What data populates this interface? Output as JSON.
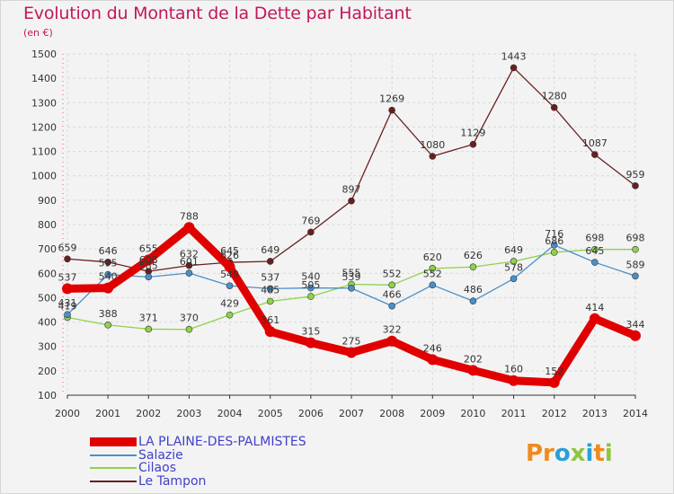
{
  "title": "Evolution du Montant de la Dette par Habitant",
  "unit": "(en €)",
  "logo": "Proxiti",
  "chart_data": {
    "type": "line",
    "title": "Evolution du Montant de la Dette par Habitant",
    "ylabel": "(en €)",
    "xlabel": "",
    "x": [
      "2000",
      "2001",
      "2002",
      "2003",
      "2004",
      "2005",
      "2006",
      "2007",
      "2008",
      "2009",
      "2010",
      "2011",
      "2012",
      "2013",
      "2014"
    ],
    "ylim": [
      100,
      1500
    ],
    "yticks": [
      100,
      200,
      300,
      400,
      500,
      600,
      700,
      800,
      900,
      1000,
      1100,
      1200,
      1300,
      1400,
      1500
    ],
    "grid": true,
    "legend_position": "bottom-left",
    "series": [
      {
        "name": "LA PLAINE-DES-PALMISTES",
        "color": "#e00000",
        "values": [
          537,
          540,
          655,
          788,
          626,
          361,
          315,
          275,
          322,
          246,
          202,
          160,
          152,
          414,
          344
        ]
      },
      {
        "name": "Salazie",
        "color": "#4a90c8",
        "values": [
          431,
          595,
          585,
          601,
          549,
          537,
          540,
          539,
          466,
          552,
          486,
          578,
          716,
          645,
          589
        ]
      },
      {
        "name": "Cilaos",
        "color": "#8fd24a",
        "values": [
          419,
          388,
          371,
          370,
          429,
          485,
          505,
          555,
          552,
          620,
          626,
          649,
          686,
          698,
          698
        ]
      },
      {
        "name": "Le Tampon",
        "color": "#6b1e1e",
        "values": [
          659,
          646,
          608,
          632,
          645,
          649,
          769,
          897,
          1269,
          1080,
          1129,
          1443,
          1280,
          1087,
          959
        ]
      }
    ]
  }
}
